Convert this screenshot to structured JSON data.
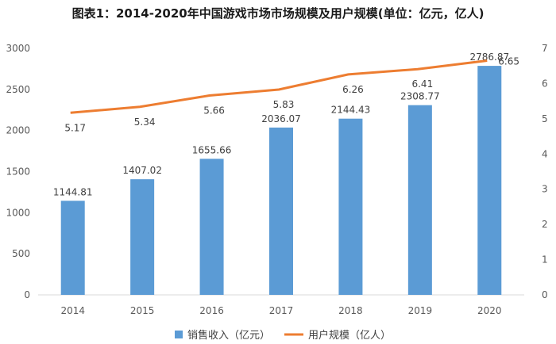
{
  "chart_data": {
    "type": "bar",
    "title": "图表1：2014-2020年中国游戏市场市场规模及用户规模(单位：亿元，亿人)",
    "categories": [
      "2014",
      "2015",
      "2016",
      "2017",
      "2018",
      "2019",
      "2020"
    ],
    "series": [
      {
        "name": "销售收入（亿元）",
        "type": "bar",
        "axis": "left",
        "color": "#5B9BD5",
        "values": [
          1144.81,
          1407.02,
          1655.66,
          2036.07,
          2144.43,
          2308.77,
          2786.87
        ],
        "labels": [
          "1144.81",
          "1407.02",
          "1655.66",
          "2036.07",
          "2144.43",
          "2308.77",
          "2786.87"
        ]
      },
      {
        "name": "用户规模（亿人）",
        "type": "line",
        "axis": "right",
        "color": "#ED7D31",
        "values": [
          5.17,
          5.34,
          5.66,
          5.83,
          6.26,
          6.41,
          6.65
        ],
        "labels": [
          "5.17",
          "5.34",
          "5.66",
          "5.83",
          "6.26",
          "6.41",
          "6.65"
        ]
      }
    ],
    "y_left": {
      "range": [
        0,
        3000
      ],
      "ticks": [
        "0",
        "500",
        "1000",
        "1500",
        "2000",
        "2500",
        "3000"
      ]
    },
    "y_right": {
      "range": [
        0,
        7
      ],
      "ticks": [
        "0",
        "1",
        "2",
        "3",
        "4",
        "5",
        "6",
        "7"
      ]
    },
    "grid": false,
    "legend": "bottom"
  }
}
